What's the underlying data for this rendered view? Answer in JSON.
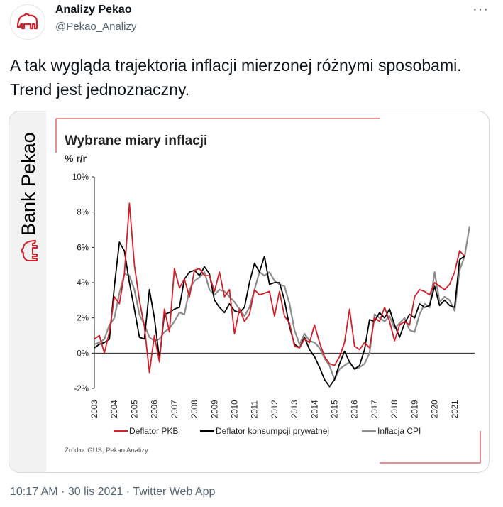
{
  "author": {
    "name": "Analizy Pekao",
    "handle": "@Pekao_Analizy"
  },
  "more_icon": "more-horizontal-icon",
  "tweet_text": "A tak wygląda trajektoria inflacji mierzonej różnymi sposobami. Trend jest jednoznaczny.",
  "media": {
    "brand": "Bank Pekao"
  },
  "meta": {
    "time": "10:17 AM",
    "dot1": "·",
    "date": "30 lis 2021",
    "dot2": "·",
    "app": "Twitter Web App"
  },
  "colors": {
    "red": "#d21f2a",
    "black": "#000000",
    "gray": "#8c8c8c"
  },
  "chart_data": {
    "type": "line",
    "title": "Wybrane miary inflacji",
    "subtitle": "% r/r",
    "source": "Źródło: GUS, Pekao Analizy",
    "ylim": [
      -2,
      10
    ],
    "yticks": [
      "10%",
      "8%",
      "6%",
      "4%",
      "2%",
      "0%",
      "-2%"
    ],
    "x_categories": [
      "2003",
      "2004",
      "2005",
      "2006",
      "2007",
      "2008",
      "2009",
      "2010",
      "2011",
      "2012",
      "2013",
      "2014",
      "2015",
      "2016",
      "2017",
      "2018",
      "2019",
      "2020",
      "2021"
    ],
    "xlim": [
      2003,
      2022
    ],
    "legend_position": "bottom",
    "series": [
      {
        "name": "Deflator PKB",
        "color": "#d21f2a",
        "x": [
          2003.0,
          2003.25,
          2003.5,
          2003.75,
          2004.0,
          2004.25,
          2004.5,
          2004.75,
          2005.0,
          2005.25,
          2005.5,
          2005.75,
          2006.0,
          2006.25,
          2006.5,
          2006.75,
          2007.0,
          2007.25,
          2007.5,
          2007.75,
          2008.0,
          2008.25,
          2008.5,
          2008.75,
          2009.0,
          2009.25,
          2009.5,
          2009.75,
          2010.0,
          2010.25,
          2010.5,
          2010.75,
          2011.0,
          2011.25,
          2011.5,
          2011.75,
          2012.0,
          2012.25,
          2012.5,
          2012.75,
          2013.0,
          2013.25,
          2013.5,
          2013.75,
          2014.0,
          2014.25,
          2014.5,
          2014.75,
          2015.0,
          2015.25,
          2015.5,
          2015.75,
          2016.0,
          2016.25,
          2016.5,
          2016.75,
          2017.0,
          2017.25,
          2017.5,
          2017.75,
          2018.0,
          2018.25,
          2018.5,
          2018.75,
          2019.0,
          2019.25,
          2019.5,
          2019.75,
          2020.0,
          2020.25,
          2020.5,
          2020.75,
          2021.0,
          2021.25,
          2021.5
        ],
        "y": [
          0.8,
          1.0,
          0.0,
          1.2,
          3.2,
          2.8,
          4.5,
          8.5,
          5.0,
          3.0,
          1.5,
          -1.1,
          1.0,
          -0.5,
          2.5,
          1.2,
          4.8,
          3.7,
          4.2,
          3.2,
          4.7,
          4.8,
          4.4,
          4.4,
          3.5,
          4.6,
          3.2,
          3.6,
          1.1,
          2.5,
          1.8,
          2.2,
          3.6,
          3.3,
          3.4,
          3.5,
          2.1,
          3.5,
          2.1,
          1.7,
          0.4,
          0.3,
          0.8,
          0.6,
          1.6,
          0.6,
          -0.2,
          -0.6,
          -0.7,
          -0.2,
          0.6,
          2.5,
          0.4,
          0.2,
          0.6,
          0.3,
          2.0,
          1.8,
          2.6,
          1.8,
          0.7,
          1.6,
          1.8,
          1.6,
          3.2,
          3.6,
          3.5,
          3.3,
          4.0,
          3.8,
          3.6,
          3.9,
          4.6,
          5.8,
          5.5
        ]
      },
      {
        "name": "Deflator konsumpcji prywatnej",
        "color": "#000000",
        "x": [
          2003.0,
          2003.25,
          2003.5,
          2003.75,
          2004.0,
          2004.25,
          2004.5,
          2004.75,
          2005.0,
          2005.25,
          2005.5,
          2005.75,
          2006.0,
          2006.25,
          2006.5,
          2006.75,
          2007.0,
          2007.25,
          2007.5,
          2007.75,
          2008.0,
          2008.25,
          2008.5,
          2008.75,
          2009.0,
          2009.25,
          2009.5,
          2009.75,
          2010.0,
          2010.25,
          2010.5,
          2010.75,
          2011.0,
          2011.25,
          2011.5,
          2011.75,
          2012.0,
          2012.25,
          2012.5,
          2012.75,
          2013.0,
          2013.25,
          2013.5,
          2013.75,
          2014.0,
          2014.25,
          2014.5,
          2014.75,
          2015.0,
          2015.25,
          2015.5,
          2015.75,
          2016.0,
          2016.25,
          2016.5,
          2016.75,
          2017.0,
          2017.25,
          2017.5,
          2017.75,
          2018.0,
          2018.25,
          2018.5,
          2018.75,
          2019.0,
          2019.25,
          2019.5,
          2019.75,
          2020.0,
          2020.25,
          2020.5,
          2020.75,
          2021.0,
          2021.25,
          2021.5
        ],
        "y": [
          0.3,
          0.5,
          0.6,
          0.8,
          3.8,
          6.3,
          5.8,
          4.0,
          2.5,
          0.9,
          0.8,
          3.6,
          2.0,
          -0.3,
          2.2,
          2.3,
          2.5,
          2.6,
          4.2,
          4.6,
          4.7,
          4.4,
          4.9,
          4.5,
          3.0,
          2.6,
          2.3,
          2.8,
          2.4,
          2.3,
          2.6,
          4.0,
          5.1,
          4.6,
          5.5,
          3.9,
          4.0,
          4.0,
          3.0,
          1.5,
          0.5,
          0.3,
          0.9,
          0.2,
          -0.2,
          -0.8,
          -1.5,
          -1.9,
          -1.5,
          -0.6,
          0.1,
          -0.5,
          -0.9,
          -0.7,
          0.2,
          1.9,
          1.8,
          2.3,
          2.0,
          2.5,
          1.6,
          0.9,
          1.7,
          2.2,
          2.0,
          2.8,
          2.6,
          2.7,
          3.8,
          2.7,
          3.0,
          2.7,
          2.6,
          5.3,
          5.5
        ]
      },
      {
        "name": "Inflacja CPI",
        "color": "#8c8c8c",
        "x": [
          2003.0,
          2003.25,
          2003.5,
          2003.75,
          2004.0,
          2004.25,
          2004.5,
          2004.75,
          2005.0,
          2005.25,
          2005.5,
          2005.75,
          2006.0,
          2006.25,
          2006.5,
          2006.75,
          2007.0,
          2007.25,
          2007.5,
          2007.75,
          2008.0,
          2008.25,
          2008.5,
          2008.75,
          2009.0,
          2009.25,
          2009.5,
          2009.75,
          2010.0,
          2010.25,
          2010.5,
          2010.75,
          2011.0,
          2011.25,
          2011.5,
          2011.75,
          2012.0,
          2012.25,
          2012.5,
          2012.75,
          2013.0,
          2013.25,
          2013.5,
          2013.75,
          2014.0,
          2014.25,
          2014.5,
          2014.75,
          2015.0,
          2015.25,
          2015.5,
          2015.75,
          2016.0,
          2016.25,
          2016.5,
          2016.75,
          2017.0,
          2017.25,
          2017.5,
          2017.75,
          2018.0,
          2018.25,
          2018.5,
          2018.75,
          2019.0,
          2019.25,
          2019.5,
          2019.75,
          2020.0,
          2020.25,
          2020.5,
          2020.75,
          2021.0,
          2021.25,
          2021.5,
          2021.75
        ],
        "y": [
          0.5,
          0.6,
          0.8,
          1.6,
          2.0,
          3.4,
          4.5,
          4.4,
          3.6,
          2.2,
          1.6,
          0.9,
          0.7,
          0.8,
          1.2,
          1.4,
          1.8,
          2.3,
          2.2,
          3.6,
          4.1,
          4.3,
          4.6,
          3.6,
          3.3,
          3.6,
          3.5,
          3.2,
          2.9,
          2.5,
          2.1,
          2.6,
          3.6,
          4.6,
          4.4,
          4.6,
          4.1,
          3.9,
          3.8,
          2.8,
          1.3,
          0.5,
          1.1,
          0.7,
          0.6,
          0.3,
          -0.3,
          -0.7,
          -1.5,
          -0.9,
          -0.7,
          -0.5,
          -0.9,
          -0.8,
          -0.6,
          0.0,
          2.2,
          2.0,
          1.8,
          2.1,
          1.4,
          1.7,
          2.0,
          1.3,
          1.2,
          2.2,
          2.8,
          2.6,
          4.6,
          2.9,
          3.2,
          3.0,
          2.4,
          4.7,
          5.5,
          7.2
        ]
      }
    ]
  }
}
